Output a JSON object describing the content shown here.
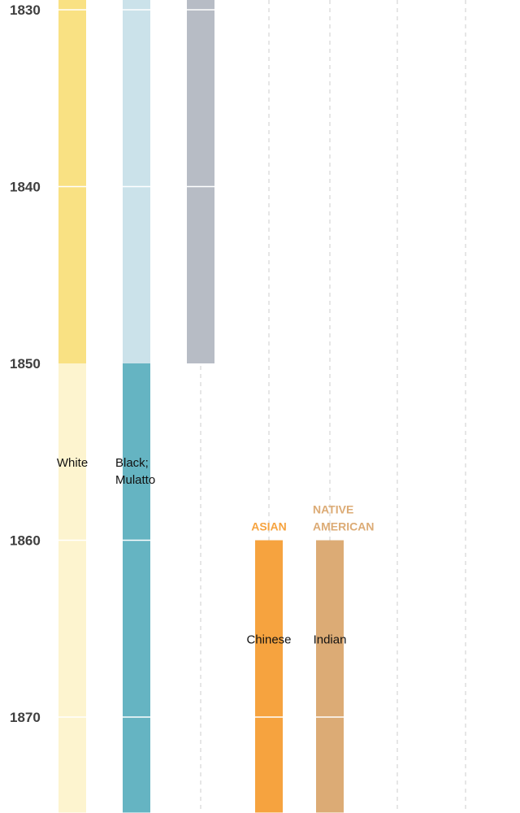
{
  "chart_data": {
    "type": "bar",
    "orientation": "vertical-timeline",
    "y_axis": {
      "ticks": [
        1830,
        1840,
        1850,
        1860,
        1870
      ],
      "tick_labels": [
        "1830",
        "1840",
        "1850",
        "1860",
        "1870"
      ],
      "range": [
        1829.4,
        1875.4
      ]
    },
    "grid": true,
    "columns": [
      {
        "segments": [
          {
            "start": 1829.4,
            "end": 1850,
            "color": "#f9e183",
            "label": ""
          },
          {
            "start": 1850,
            "end": 1875.4,
            "color": "#fdf4cf",
            "label": "White"
          }
        ]
      },
      {
        "segments": [
          {
            "start": 1829.4,
            "end": 1850,
            "color": "#cbe2ea",
            "label": ""
          },
          {
            "start": 1850,
            "end": 1875.4,
            "color": "#65b4c2",
            "label": "Black; Mulatto"
          }
        ]
      },
      {
        "segments": [
          {
            "start": 1829.4,
            "end": 1850,
            "color": "#b7bcc5",
            "label": ""
          }
        ]
      },
      {
        "group": "ASIAN",
        "group_color": "#f6a33f",
        "segments": [
          {
            "start": 1860,
            "end": 1875.4,
            "color": "#f6a33f",
            "label": "Chinese"
          }
        ]
      },
      {
        "group": "NATIVE AMERICAN",
        "group_color": "#dcab75",
        "segments": [
          {
            "start": 1860,
            "end": 1875.4,
            "color": "#dcab75",
            "label": "Indian"
          }
        ]
      },
      {
        "segments": []
      },
      {
        "segments": []
      }
    ]
  }
}
